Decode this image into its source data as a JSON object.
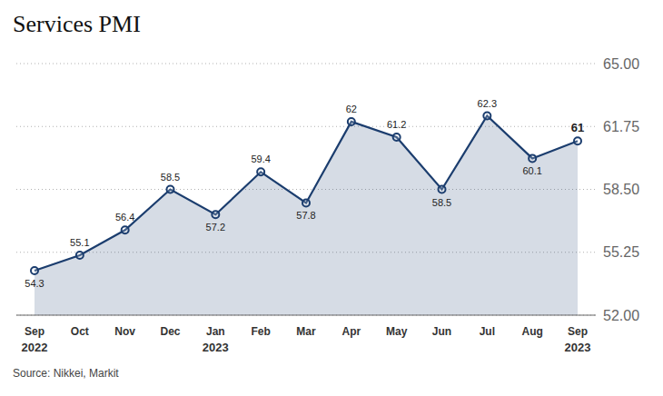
{
  "chart_data": {
    "type": "area",
    "title": "Services PMI",
    "categories": [
      "Sep",
      "Oct",
      "Nov",
      "Dec",
      "Jan",
      "Feb",
      "Mar",
      "Apr",
      "May",
      "Jun",
      "Jul",
      "Aug",
      "Sep"
    ],
    "values": [
      54.3,
      55.1,
      56.4,
      58.5,
      57.2,
      59.4,
      57.8,
      62.0,
      61.2,
      58.5,
      62.3,
      60.1,
      61.0
    ],
    "annotations": [
      {
        "text": "2022",
        "at": 0
      },
      {
        "text": "2023",
        "at": 4
      },
      {
        "text": "2023",
        "at": 12
      }
    ],
    "source": "Source: Nikkei, Markit",
    "ylim": [
      52.0,
      65.0
    ],
    "yticks": [
      {
        "value": 52.0,
        "label": "52.00"
      },
      {
        "value": 55.25,
        "label": "55.25"
      },
      {
        "value": 58.5,
        "label": "58.50"
      },
      {
        "value": 61.75,
        "label": "61.75"
      },
      {
        "value": 65.0,
        "label": "65.00"
      }
    ],
    "color": "#1b3d6e",
    "grid": true,
    "data_labels": true
  }
}
